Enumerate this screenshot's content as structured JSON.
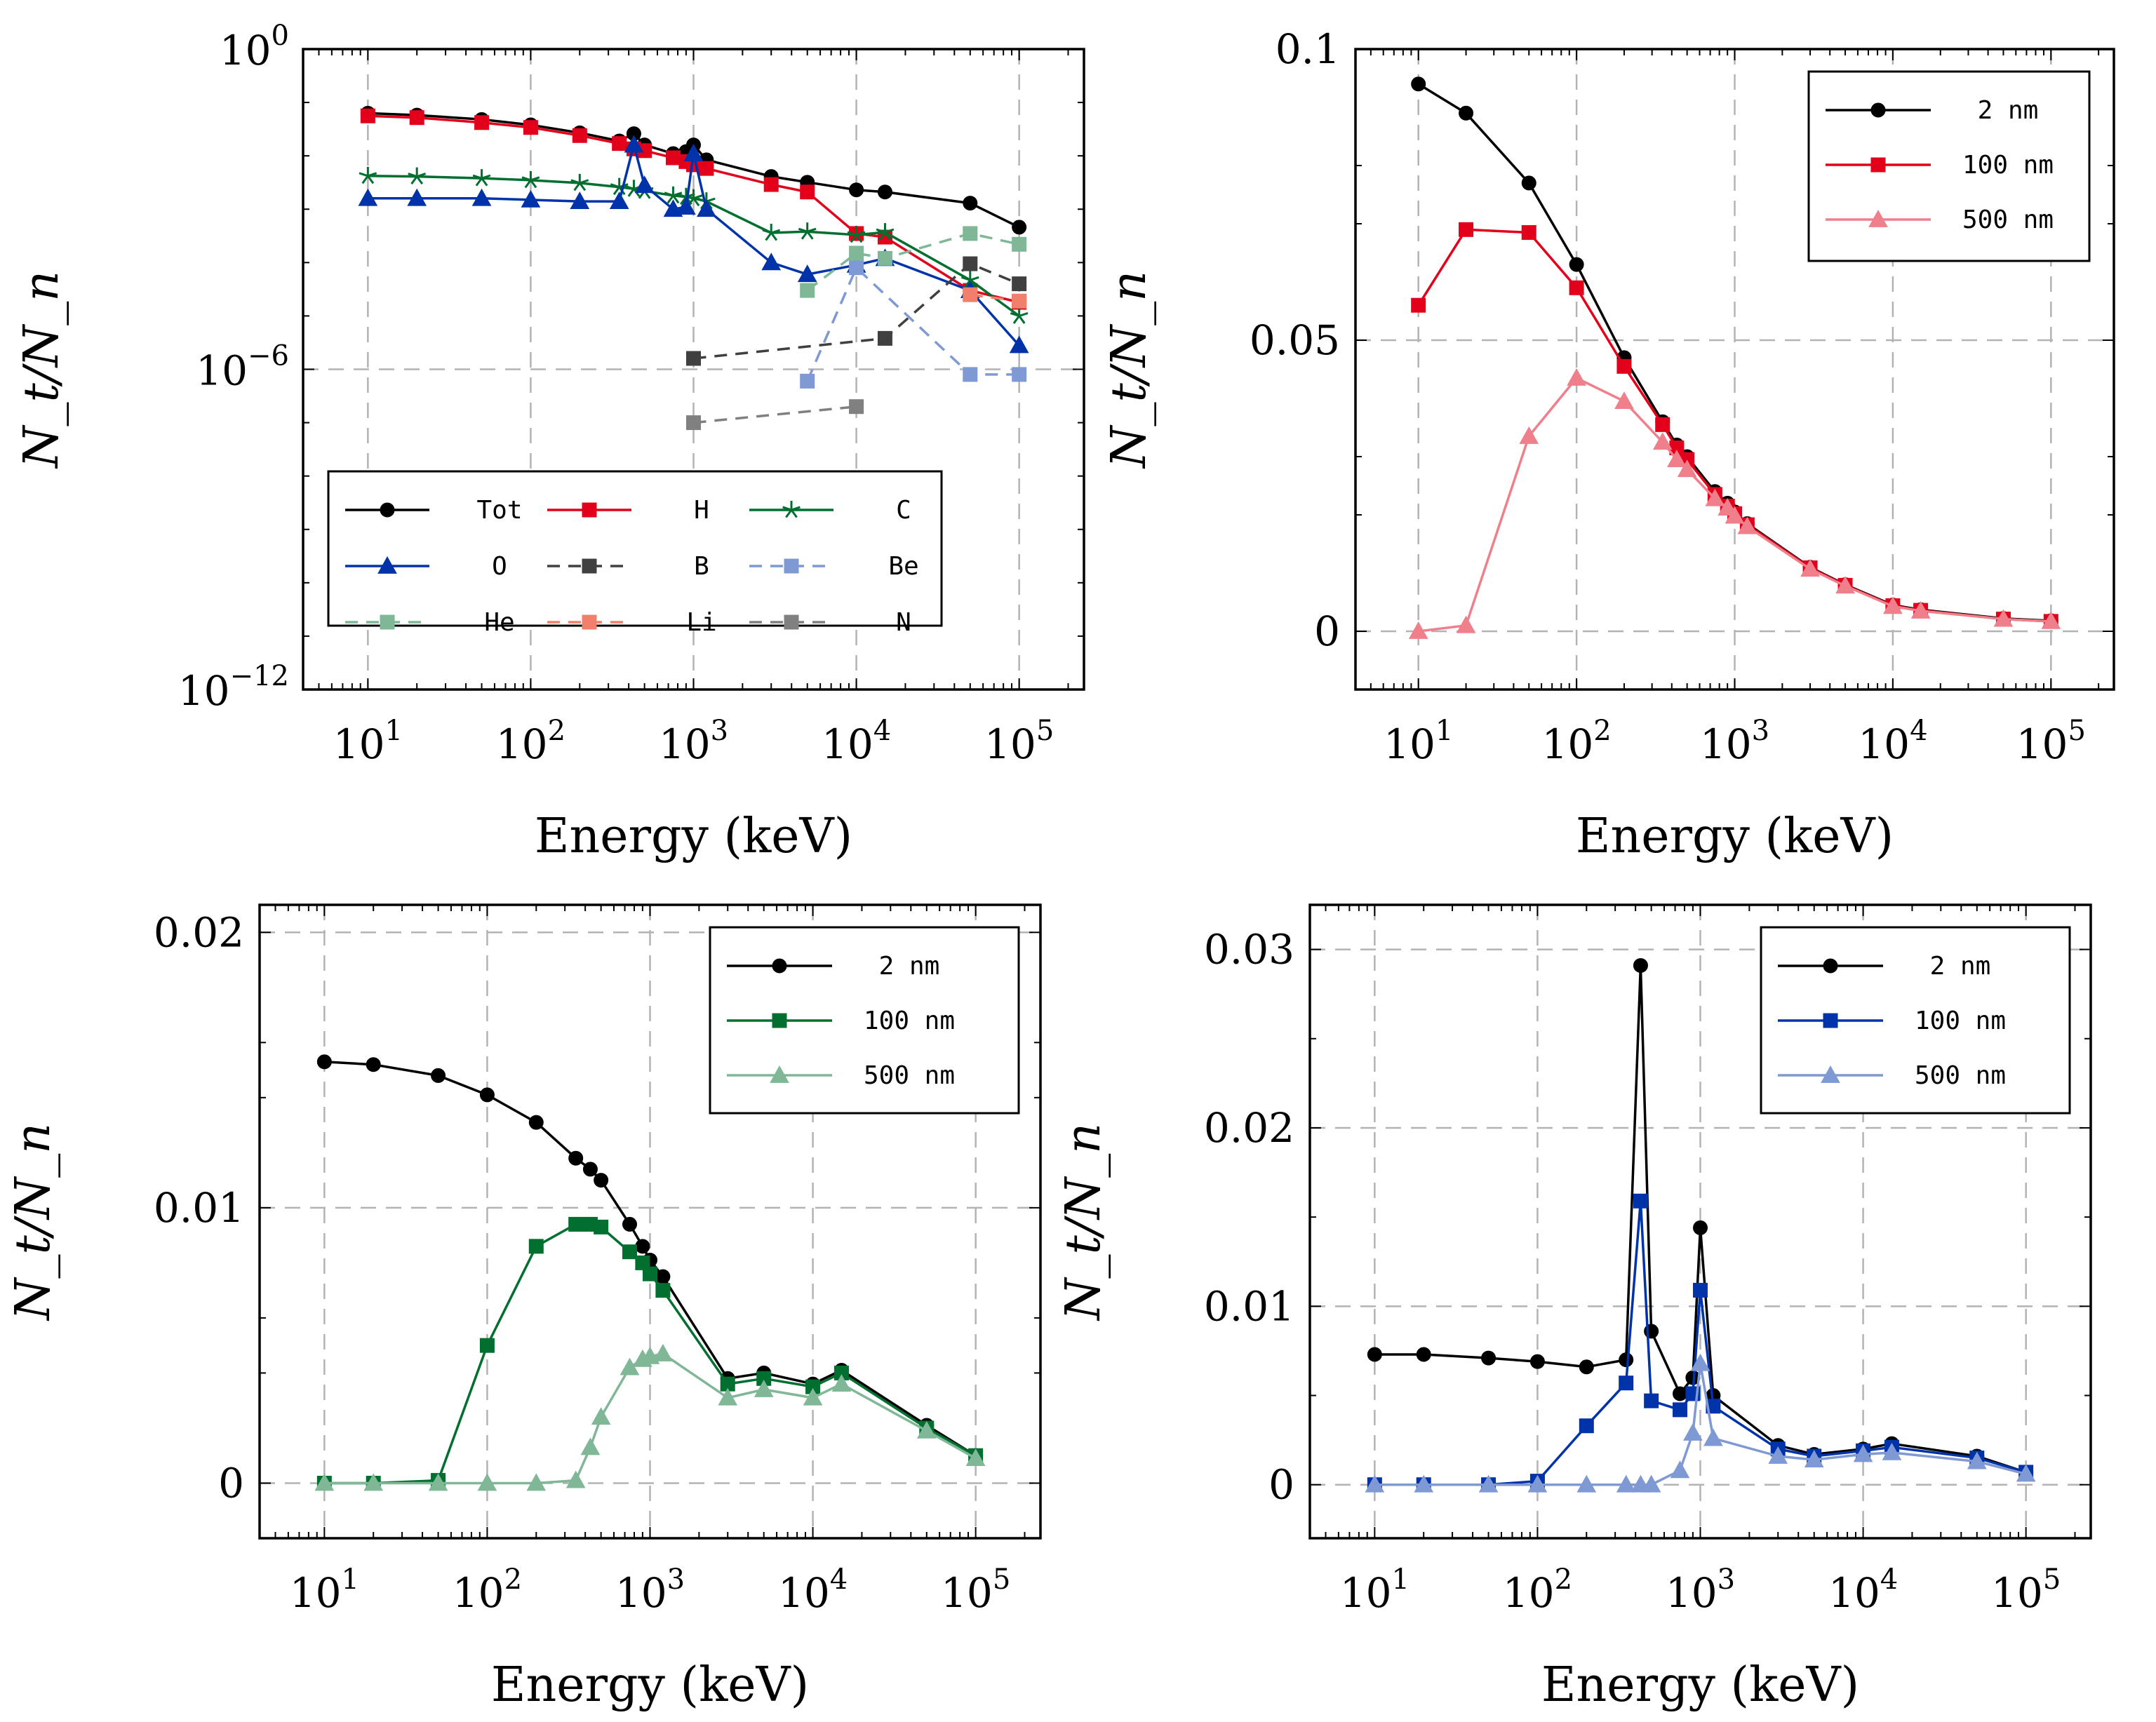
{
  "colors": {
    "black": "#000000",
    "red": "#e2001a",
    "green": "#006f2f",
    "blue": "#0033aa",
    "dark": "#404040",
    "lightblue": "#7f99d4",
    "lightgreen": "#7fb797",
    "salmon": "#f0806c",
    "grey": "#808080",
    "pink": "#f07f8c"
  },
  "chart_data": [
    {
      "id": "p1",
      "type": "line",
      "xscale": "log",
      "yscale": "log",
      "xlim": [
        4,
        250000
      ],
      "ylim": [
        1e-12,
        1
      ],
      "xlabel": "Energy (keV)",
      "ylabel": "N_t/N_n",
      "xticks": [
        {
          "v": 10,
          "b": "10",
          "e": "1"
        },
        {
          "v": 100,
          "b": "10",
          "e": "2"
        },
        {
          "v": 1000,
          "b": "10",
          "e": "3"
        },
        {
          "v": 10000,
          "b": "10",
          "e": "4"
        },
        {
          "v": 100000,
          "b": "10",
          "e": "5"
        }
      ],
      "yticks": [
        {
          "v": 1,
          "b": "10",
          "e": "0"
        },
        {
          "v": 1e-06,
          "b": "10",
          "e": "−6"
        },
        {
          "v": 1e-12,
          "b": "10",
          "e": "−12"
        }
      ],
      "legend": {
        "position": "bottom-left",
        "columns": 3
      },
      "series": [
        {
          "name": "Tot",
          "color": "black",
          "marker": "circle",
          "dash": false,
          "x": [
            10,
            20,
            50,
            100,
            200,
            350,
            430,
            500,
            750,
            900,
            1000,
            1200,
            3000,
            5000,
            10000,
            15000,
            50000,
            100000
          ],
          "y": [
            0.063,
            0.058,
            0.048,
            0.038,
            0.027,
            0.019,
            0.026,
            0.016,
            0.011,
            0.012,
            0.016,
            0.0084,
            0.0041,
            0.0032,
            0.0023,
            0.0021,
            0.0013,
            0.00046
          ]
        },
        {
          "name": "H",
          "color": "red",
          "marker": "square",
          "dash": false,
          "x": [
            10,
            20,
            50,
            100,
            200,
            350,
            430,
            500,
            750,
            900,
            1000,
            1200,
            3000,
            5000,
            10000,
            15000,
            50000,
            100000
          ],
          "y": [
            0.056,
            0.052,
            0.042,
            0.034,
            0.024,
            0.017,
            0.0135,
            0.0125,
            0.0092,
            0.0078,
            0.0068,
            0.0058,
            0.0029,
            0.0021,
            0.00035,
            0.0003,
            3e-05,
            1.8e-05
          ]
        },
        {
          "name": "C",
          "color": "green",
          "marker": "star",
          "dash": false,
          "x": [
            10,
            20,
            50,
            100,
            200,
            350,
            430,
            500,
            750,
            900,
            1000,
            1200,
            3000,
            5000,
            10000,
            15000,
            50000,
            100000
          ],
          "y": [
            0.0042,
            0.0041,
            0.0038,
            0.0035,
            0.0031,
            0.0026,
            0.0024,
            0.0022,
            0.0018,
            0.0017,
            0.0016,
            0.0014,
            0.00036,
            0.00038,
            0.00033,
            0.00037,
            4.7e-05,
            1e-05
          ]
        },
        {
          "name": "O",
          "color": "blue",
          "marker": "triangle",
          "dash": false,
          "x": [
            10,
            20,
            50,
            100,
            200,
            350,
            430,
            500,
            750,
            900,
            1000,
            1200,
            3000,
            5000,
            10000,
            15000,
            50000,
            100000
          ],
          "y": [
            0.0016,
            0.0016,
            0.0016,
            0.0015,
            0.0014,
            0.0014,
            0.016,
            0.0028,
            0.001,
            0.0011,
            0.011,
            0.001,
            0.0001,
            6e-05,
            9e-05,
            0.00012,
            3e-05,
            2.8e-06
          ]
        },
        {
          "name": "B",
          "color": "dark",
          "marker": "square",
          "dash": true,
          "x": [
            1000,
            15000,
            50000,
            100000
          ],
          "y": [
            1.6e-06,
            3.8e-06,
            9.5e-05,
            4e-05
          ]
        },
        {
          "name": "Be",
          "color": "lightblue",
          "marker": "square",
          "dash": true,
          "x": [
            5000,
            10000,
            50000,
            100000
          ],
          "y": [
            6e-07,
            8e-05,
            8e-07,
            8e-07
          ]
        },
        {
          "name": "He",
          "color": "lightgreen",
          "marker": "square",
          "dash": true,
          "x": [
            5000,
            10000,
            15000,
            50000,
            100000
          ],
          "y": [
            3e-05,
            0.00015,
            0.00012,
            0.00035,
            0.00022
          ]
        },
        {
          "name": "Li",
          "color": "salmon",
          "marker": "square",
          "dash": true,
          "x": [
            50000,
            100000
          ],
          "y": [
            2.5e-05,
            1.9e-05
          ]
        },
        {
          "name": "N",
          "color": "grey",
          "marker": "square",
          "dash": true,
          "x": [
            1000,
            10000
          ],
          "y": [
            1e-07,
            2e-07
          ]
        }
      ]
    },
    {
      "id": "p2",
      "type": "line",
      "xscale": "log",
      "yscale": "linear",
      "xlim": [
        4,
        250000
      ],
      "ylim": [
        -0.01,
        0.1
      ],
      "xlabel": "Energy (keV)",
      "ylabel": "N_t/N_n",
      "xticks": [
        {
          "v": 10,
          "b": "10",
          "e": "1"
        },
        {
          "v": 100,
          "b": "10",
          "e": "2"
        },
        {
          "v": 1000,
          "b": "10",
          "e": "3"
        },
        {
          "v": 10000,
          "b": "10",
          "e": "4"
        },
        {
          "v": 100000,
          "b": "10",
          "e": "5"
        }
      ],
      "yticks": [
        {
          "v": 0,
          "t": "0"
        },
        {
          "v": 0.05,
          "t": "0.05"
        },
        {
          "v": 0.1,
          "t": "0.1"
        }
      ],
      "yminor": [
        0.02,
        0.03,
        0.07,
        0.08
      ],
      "legend": {
        "position": "top-right",
        "columns": 1
      },
      "series": [
        {
          "name": "2 nm",
          "color": "black",
          "marker": "circle",
          "dash": false,
          "x": [
            10,
            20,
            50,
            100,
            200,
            350,
            430,
            500,
            750,
            900,
            1000,
            1200,
            3000,
            5000,
            10000,
            15000,
            50000,
            100000
          ],
          "y": [
            0.094,
            0.089,
            0.077,
            0.063,
            0.047,
            0.036,
            0.032,
            0.03,
            0.024,
            0.022,
            0.0205,
            0.0185,
            0.011,
            0.008,
            0.0045,
            0.0037,
            0.0022,
            0.0018
          ]
        },
        {
          "name": "100 nm",
          "color": "red",
          "marker": "square",
          "dash": false,
          "x": [
            10,
            20,
            50,
            100,
            200,
            350,
            430,
            500,
            750,
            900,
            1000,
            1200,
            3000,
            5000,
            10000,
            15000,
            50000,
            100000
          ],
          "y": [
            0.056,
            0.069,
            0.0685,
            0.059,
            0.0455,
            0.0355,
            0.0315,
            0.0295,
            0.0235,
            0.0215,
            0.0202,
            0.0183,
            0.0109,
            0.0079,
            0.0044,
            0.0036,
            0.0021,
            0.0017
          ]
        },
        {
          "name": "500 nm",
          "color": "pink",
          "marker": "triangle",
          "dash": false,
          "x": [
            10,
            20,
            50,
            100,
            200,
            350,
            430,
            500,
            750,
            900,
            1000,
            1200,
            3000,
            5000,
            10000,
            15000,
            50000,
            100000
          ],
          "y": [
            0.0,
            0.001,
            0.0335,
            0.0435,
            0.0395,
            0.0325,
            0.0295,
            0.0278,
            0.0228,
            0.0212,
            0.0198,
            0.018,
            0.0107,
            0.0078,
            0.0043,
            0.0035,
            0.0021,
            0.0017
          ]
        }
      ]
    },
    {
      "id": "p3",
      "type": "line",
      "xscale": "log",
      "yscale": "linear",
      "xlim": [
        4,
        250000
      ],
      "ylim": [
        -0.002,
        0.021
      ],
      "xlabel": "Energy (keV)",
      "ylabel": "N_t/N_n",
      "xticks": [
        {
          "v": 10,
          "b": "10",
          "e": "1"
        },
        {
          "v": 100,
          "b": "10",
          "e": "2"
        },
        {
          "v": 1000,
          "b": "10",
          "e": "3"
        },
        {
          "v": 10000,
          "b": "10",
          "e": "4"
        },
        {
          "v": 100000,
          "b": "10",
          "e": "5"
        }
      ],
      "yticks": [
        {
          "v": 0,
          "t": "0"
        },
        {
          "v": 0.01,
          "t": "0.01"
        },
        {
          "v": 0.02,
          "t": "0.02"
        }
      ],
      "yminor": [
        0.004,
        0.006,
        0.014,
        0.016
      ],
      "legend": {
        "position": "top-right",
        "columns": 1
      },
      "series": [
        {
          "name": "2 nm",
          "color": "black",
          "marker": "circle",
          "dash": false,
          "x": [
            10,
            20,
            50,
            100,
            200,
            350,
            430,
            500,
            750,
            900,
            1000,
            1200,
            3000,
            5000,
            10000,
            15000,
            50000,
            100000
          ],
          "y": [
            0.0153,
            0.0152,
            0.0148,
            0.0141,
            0.0131,
            0.0118,
            0.0114,
            0.011,
            0.0094,
            0.0086,
            0.0081,
            0.0075,
            0.0038,
            0.004,
            0.0036,
            0.0041,
            0.0021,
            0.001
          ]
        },
        {
          "name": "100 nm",
          "color": "green",
          "marker": "square",
          "dash": false,
          "x": [
            10,
            20,
            50,
            100,
            200,
            350,
            430,
            500,
            750,
            900,
            1000,
            1200,
            3000,
            5000,
            10000,
            15000,
            50000,
            100000
          ],
          "y": [
            0.0,
            0.0,
            0.0001,
            0.005,
            0.0086,
            0.0094,
            0.0094,
            0.0093,
            0.0084,
            0.008,
            0.0076,
            0.007,
            0.0036,
            0.0038,
            0.0035,
            0.004,
            0.002,
            0.001
          ]
        },
        {
          "name": "500 nm",
          "color": "lightgreen",
          "marker": "triangle",
          "dash": false,
          "x": [
            10,
            20,
            50,
            100,
            200,
            350,
            430,
            500,
            750,
            900,
            1000,
            1200,
            3000,
            5000,
            10000,
            15000,
            50000,
            100000
          ],
          "y": [
            0.0,
            0.0,
            0.0,
            0.0,
            0.0,
            0.0001,
            0.0013,
            0.0024,
            0.0042,
            0.0045,
            0.0046,
            0.0047,
            0.0031,
            0.0034,
            0.0031,
            0.0036,
            0.0019,
            0.0009
          ]
        }
      ]
    },
    {
      "id": "p4",
      "type": "line",
      "xscale": "log",
      "yscale": "linear",
      "xlim": [
        4,
        250000
      ],
      "ylim": [
        -0.003,
        0.0325
      ],
      "xlabel": "Energy (keV)",
      "ylabel": "N_t/N_n",
      "xticks": [
        {
          "v": 10,
          "b": "10",
          "e": "1"
        },
        {
          "v": 100,
          "b": "10",
          "e": "2"
        },
        {
          "v": 1000,
          "b": "10",
          "e": "3"
        },
        {
          "v": 10000,
          "b": "10",
          "e": "4"
        },
        {
          "v": 100000,
          "b": "10",
          "e": "5"
        }
      ],
      "yticks": [
        {
          "v": 0,
          "t": "0"
        },
        {
          "v": 0.01,
          "t": "0.01"
        },
        {
          "v": 0.02,
          "t": "0.02"
        },
        {
          "v": 0.03,
          "t": "0.03"
        }
      ],
      "yminor": [
        0.005,
        0.015,
        0.025
      ],
      "legend": {
        "position": "top-right",
        "columns": 1
      },
      "series": [
        {
          "name": "2 nm",
          "color": "black",
          "marker": "circle",
          "dash": false,
          "x": [
            10,
            20,
            50,
            100,
            200,
            350,
            430,
            500,
            750,
            900,
            1000,
            1200,
            3000,
            5000,
            10000,
            15000,
            50000,
            100000
          ],
          "y": [
            0.0073,
            0.0073,
            0.0071,
            0.0069,
            0.0066,
            0.007,
            0.0291,
            0.0086,
            0.0051,
            0.006,
            0.0144,
            0.005,
            0.0022,
            0.0017,
            0.002,
            0.0023,
            0.0016,
            0.0007
          ]
        },
        {
          "name": "100 nm",
          "color": "blue",
          "marker": "square",
          "dash": false,
          "x": [
            10,
            20,
            50,
            100,
            200,
            350,
            430,
            500,
            750,
            900,
            1000,
            1200,
            3000,
            5000,
            10000,
            15000,
            50000,
            100000
          ],
          "y": [
            0.0,
            0.0,
            0.0,
            0.0002,
            0.0033,
            0.0057,
            0.0159,
            0.0047,
            0.0042,
            0.0051,
            0.0109,
            0.0044,
            0.002,
            0.0016,
            0.0019,
            0.0021,
            0.0015,
            0.0007
          ]
        },
        {
          "name": "500 nm",
          "color": "lightblue",
          "marker": "triangle",
          "dash": false,
          "x": [
            10,
            20,
            50,
            100,
            200,
            350,
            430,
            500,
            750,
            900,
            1000,
            1200,
            3000,
            5000,
            10000,
            15000,
            50000,
            100000
          ],
          "y": [
            0.0,
            0.0,
            0.0,
            0.0,
            0.0,
            0.0,
            0.0,
            0.0,
            0.0008,
            0.0029,
            0.0068,
            0.0026,
            0.0016,
            0.0014,
            0.0017,
            0.0018,
            0.0013,
            0.0006
          ]
        }
      ]
    }
  ]
}
